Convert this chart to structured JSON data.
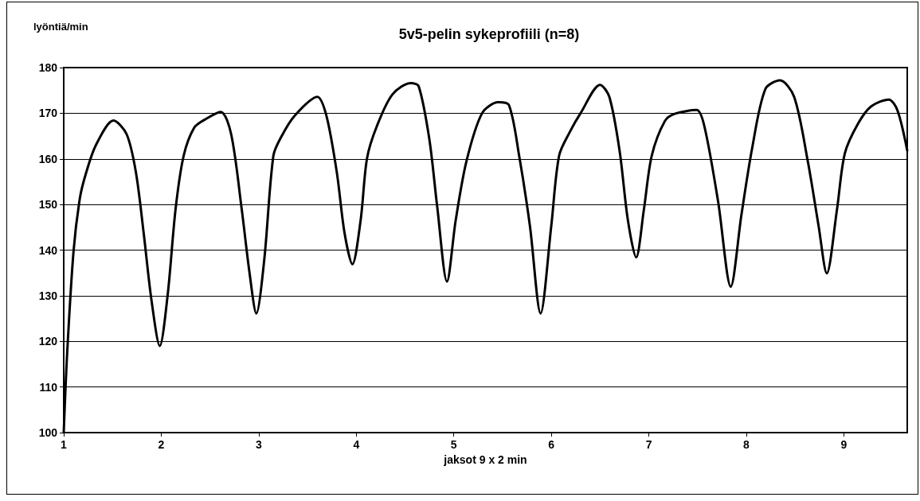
{
  "chart_data": {
    "type": "line",
    "title": "5v5-pelin sykeprofiili (n=8)",
    "xlabel": "jaksot 9 x 2 min",
    "ylabel": "lyöntiä/min",
    "xlim": [
      1,
      9.65
    ],
    "xticks": [
      1,
      2,
      3,
      4,
      5,
      6,
      7,
      8,
      9
    ],
    "ylim": [
      100,
      180
    ],
    "yticks": [
      100,
      110,
      120,
      130,
      140,
      150,
      160,
      170,
      180
    ],
    "grid": "y",
    "marker": "none",
    "line_style": "solid",
    "series": [
      {
        "color": "#000000",
        "x": [
          1.0,
          1.035,
          1.1,
          1.165,
          1.225,
          1.33,
          1.51,
          1.645,
          1.74,
          1.82,
          1.9,
          1.985,
          2.066,
          2.147,
          2.23,
          2.337,
          2.446,
          2.61,
          2.717,
          2.825,
          2.906,
          2.975,
          3.056,
          3.15,
          3.23,
          3.37,
          3.6,
          3.693,
          3.8,
          3.88,
          3.96,
          4.045,
          4.11,
          4.21,
          4.37,
          4.56,
          4.64,
          4.75,
          4.83,
          4.93,
          5.02,
          5.13,
          5.29,
          5.456,
          5.565,
          5.67,
          5.78,
          5.89,
          6.0,
          6.08,
          6.19,
          6.3,
          6.5,
          6.595,
          6.7,
          6.785,
          6.87,
          6.95,
          7.03,
          7.165,
          7.27,
          7.49,
          7.57,
          7.71,
          7.84,
          7.95,
          8.06,
          8.195,
          8.345,
          8.49,
          8.63,
          8.74,
          8.825,
          8.93,
          9.01,
          9.145,
          9.28,
          9.46,
          9.55,
          9.65
        ],
        "values": [
          100,
          117.3,
          139.6,
          151.3,
          156.6,
          163,
          168.4,
          165.4,
          157.1,
          143.7,
          129,
          119,
          130.2,
          149,
          160.7,
          166.8,
          168.6,
          170.3,
          165.4,
          149,
          134.9,
          126.1,
          137.8,
          160.7,
          164.8,
          169.5,
          173.6,
          169.5,
          157.1,
          143.7,
          136.9,
          146.6,
          160.1,
          167.1,
          174.1,
          176.6,
          175.9,
          164.2,
          149.5,
          133.1,
          146.6,
          159.5,
          170,
          172.4,
          171.8,
          160.7,
          145.4,
          126.1,
          145.4,
          160.7,
          165.9,
          170,
          176.2,
          173.6,
          161.8,
          146.6,
          138.4,
          149,
          160.7,
          168.3,
          169.9,
          170.7,
          167.1,
          150.7,
          132,
          147.8,
          162.4,
          175.3,
          177.2,
          173.6,
          159.5,
          145.4,
          134.9,
          149,
          161.2,
          167.7,
          171.5,
          173,
          170.6,
          161.8
        ]
      }
    ]
  }
}
